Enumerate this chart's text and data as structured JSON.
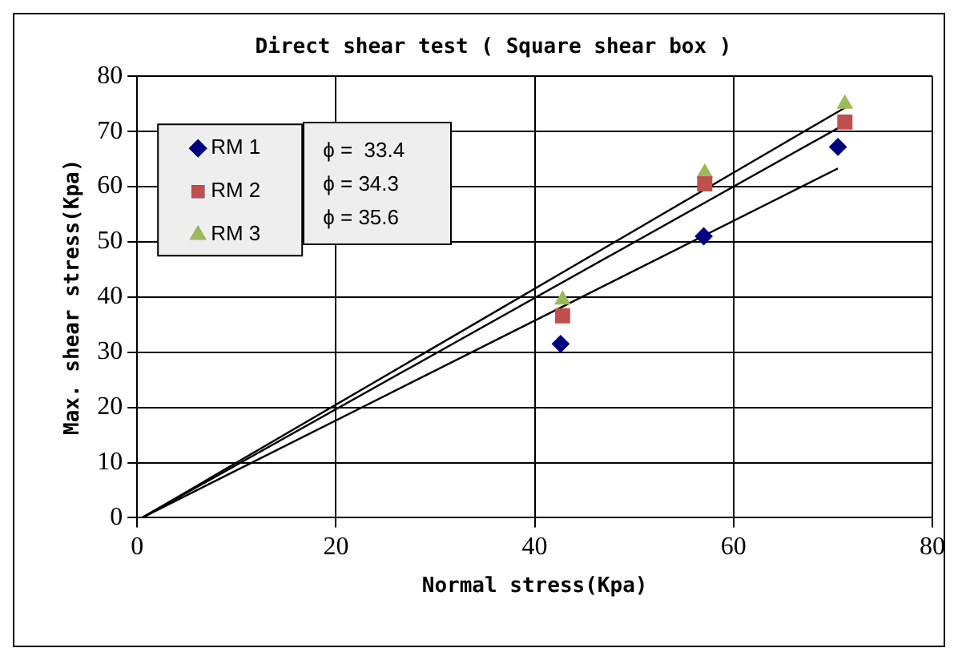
{
  "chart_data": {
    "type": "scatter",
    "title": "Direct shear test ( Square shear box )",
    "xlabel": "Normal stress(Kpa)",
    "ylabel": "Max. shear stress(Kpa)",
    "xlim": [
      0,
      80
    ],
    "xticks": [
      0,
      20,
      40,
      60,
      80
    ],
    "ylim": [
      0,
      80
    ],
    "yticks": [
      0,
      10,
      20,
      30,
      40,
      50,
      60,
      70,
      80
    ],
    "grid": true,
    "legend": "top left",
    "annotations": [
      "ϕ =  33.4",
      "ϕ = 34.3",
      "ϕ = 35.6"
    ],
    "series": [
      {
        "name": "RM 1",
        "color": "#000080",
        "marker": "diamond",
        "x": [
          42.6,
          57,
          70.5
        ],
        "values": [
          31.5,
          51,
          67.2
        ]
      },
      {
        "name": "RM 2",
        "color": "#c0504d",
        "marker": "square",
        "x": [
          42.8,
          57.1,
          71.2
        ],
        "values": [
          36.6,
          60.5,
          71.7
        ]
      },
      {
        "name": "RM 3",
        "color": "#9bbb59",
        "marker": "triangle",
        "x": [
          42.8,
          57.1,
          71.2
        ],
        "values": [
          39.5,
          62.5,
          75
        ]
      },
      {
        "type": "line",
        "color": "#000000",
        "marker": "none",
        "x": [
          0.5,
          70.5
        ],
        "values": [
          0,
          63.3
        ]
      },
      {
        "type": "line",
        "color": "#000000",
        "marker": "none",
        "x": [
          0.5,
          71.2
        ],
        "values": [
          0,
          71.3
        ]
      },
      {
        "type": "line",
        "color": "#000000",
        "marker": "none",
        "x": [
          0.5,
          71.2
        ],
        "values": [
          0,
          74.3
        ]
      }
    ]
  }
}
